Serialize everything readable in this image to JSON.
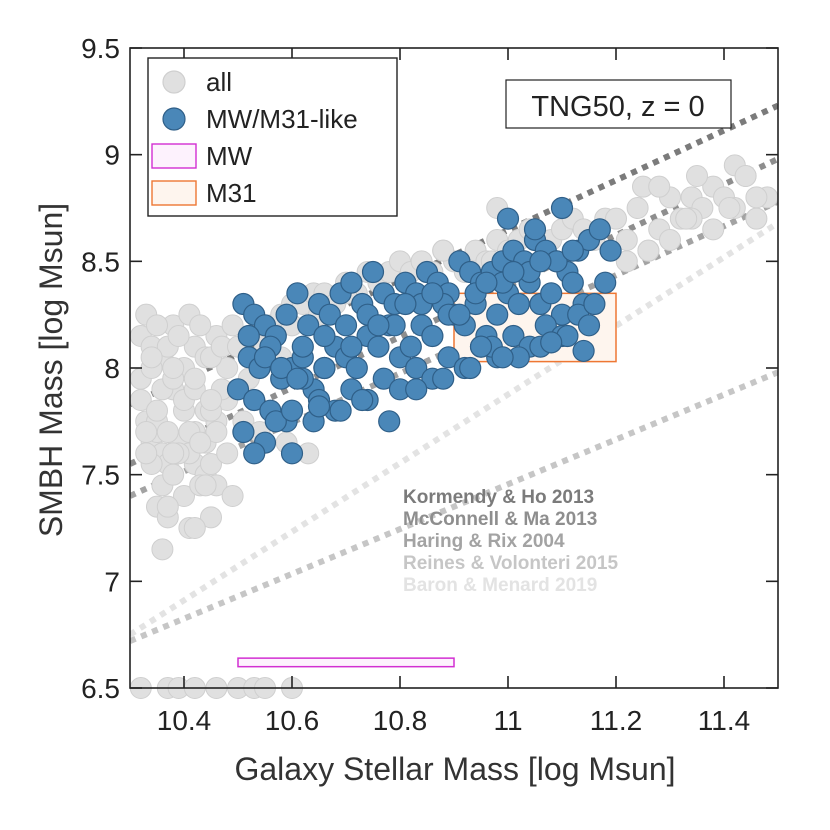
{
  "chart_data": {
    "type": "scatter",
    "title": "",
    "xlabel": "Galaxy Stellar Mass [log Msun]",
    "ylabel": "SMBH Mass [log Msun]",
    "xlim": [
      10.3,
      11.5
    ],
    "ylim": [
      6.5,
      9.5
    ],
    "xticks": [
      10.4,
      10.6,
      10.8,
      11,
      11.2,
      11.4
    ],
    "xtick_labels": [
      "10.4",
      "10.6",
      "10.8",
      "11",
      "11.2",
      "11.4"
    ],
    "yticks": [
      6.5,
      7,
      7.5,
      8,
      8.5,
      9,
      9.5
    ],
    "ytick_labels": [
      "6.5",
      "7",
      "7.5",
      "8",
      "8.5",
      "9",
      "9.5"
    ],
    "annotation": "TNG50, z = 0",
    "legend": {
      "placement": "top-left",
      "entries": [
        {
          "label": "all",
          "kind": "marker",
          "color": "#e0e0e0",
          "edge": "#cfcfcf"
        },
        {
          "label": "MW/M31-like",
          "kind": "marker",
          "color": "#4a87b8",
          "edge": "#2f5f88"
        },
        {
          "label": "MW",
          "kind": "box",
          "color": "#fdf2fd",
          "edge": "#d22fd2"
        },
        {
          "label": "M31",
          "kind": "box",
          "color": "#fef5ee",
          "edge": "#ee7733"
        }
      ]
    },
    "series": [
      {
        "name": "all",
        "color": "#e0e0e0",
        "edge": "#cfcfcf",
        "x": [
          10.32,
          10.33,
          10.34,
          10.35,
          10.36,
          10.37,
          10.38,
          10.4,
          10.42,
          10.44,
          10.46,
          10.48,
          10.32,
          10.34,
          10.36,
          10.38,
          10.4,
          10.42,
          10.44,
          10.46,
          10.48,
          10.32,
          10.34,
          10.36,
          10.38,
          10.4,
          10.42,
          10.44,
          10.46,
          10.33,
          10.35,
          10.37,
          10.39,
          10.41,
          10.43,
          10.45,
          10.47,
          10.49,
          10.33,
          10.35,
          10.37,
          10.39,
          10.41,
          10.43,
          10.45,
          10.34,
          10.36,
          10.38,
          10.4,
          10.42,
          10.44,
          10.46,
          10.48,
          10.35,
          10.37,
          10.39,
          10.41,
          10.43,
          10.45,
          10.47,
          10.5,
          10.52,
          10.54,
          10.56,
          10.58,
          10.6,
          10.62,
          10.64,
          10.66,
          10.68,
          10.7,
          10.72,
          10.74,
          10.76,
          10.78,
          10.8,
          10.82,
          10.84,
          10.86,
          10.88,
          10.9,
          10.92,
          10.94,
          10.96,
          10.98,
          11.0,
          11.02,
          11.04,
          11.06,
          11.08,
          11.1,
          11.12,
          11.14,
          11.16,
          11.18,
          11.2,
          11.22,
          11.24,
          11.26,
          11.28,
          11.3,
          11.32,
          11.34,
          11.36,
          11.38,
          11.4,
          11.42,
          11.44,
          11.46,
          11.48,
          11.22,
          11.26,
          11.3,
          11.34,
          11.38,
          11.42,
          11.46,
          11.25,
          11.33,
          11.41,
          10.36,
          10.41,
          10.45,
          10.49,
          10.44,
          10.37,
          10.42,
          10.33,
          10.38,
          10.35,
          10.98,
          11.28,
          11.35,
          11.44,
          10.75,
          10.88,
          10.97,
          10.6,
          10.55,
          10.65,
          10.7,
          10.52,
          10.58,
          10.34,
          10.38,
          10.42,
          10.45,
          10.51,
          10.54,
          10.59,
          10.63
        ],
        "y": [
          7.85,
          7.75,
          7.65,
          7.7,
          7.6,
          7.55,
          7.9,
          7.8,
          7.7,
          7.65,
          7.75,
          7.85,
          8.15,
          8.1,
          8.05,
          8.2,
          8.0,
          8.1,
          8.05,
          8.15,
          8.0,
          7.95,
          7.55,
          7.45,
          7.5,
          7.4,
          7.55,
          7.5,
          7.45,
          8.25,
          8.2,
          8.1,
          8.15,
          8.25,
          8.2,
          8.05,
          8.1,
          8.2,
          7.6,
          7.35,
          7.3,
          7.65,
          7.6,
          7.45,
          7.55,
          8.0,
          7.9,
          7.95,
          7.85,
          7.9,
          7.8,
          7.7,
          7.6,
          7.75,
          7.7,
          7.6,
          7.7,
          7.65,
          7.8,
          7.9,
          8.1,
          8.15,
          8.2,
          8.2,
          8.25,
          8.3,
          8.3,
          8.35,
          8.35,
          8.3,
          8.4,
          8.35,
          8.45,
          8.4,
          8.45,
          8.5,
          8.45,
          8.5,
          8.45,
          8.55,
          8.5,
          8.45,
          8.55,
          8.5,
          8.6,
          8.55,
          8.6,
          8.65,
          8.6,
          8.6,
          8.65,
          8.7,
          8.65,
          8.6,
          8.7,
          8.7,
          8.6,
          8.75,
          8.55,
          8.65,
          8.8,
          8.7,
          8.8,
          8.75,
          8.85,
          8.8,
          8.75,
          8.9,
          8.7,
          8.8,
          8.5,
          8.55,
          8.6,
          8.7,
          8.65,
          8.95,
          8.8,
          8.85,
          8.7,
          8.75,
          7.15,
          7.25,
          7.3,
          7.4,
          7.45,
          7.35,
          7.25,
          7.7,
          7.6,
          7.8,
          8.75,
          8.85,
          8.9,
          8.9,
          8.45,
          8.55,
          8.5,
          8.2,
          8.1,
          8.25,
          8.35,
          7.95,
          8.05,
          8.05,
          8.0,
          7.95,
          7.85,
          7.75,
          7.7,
          7.65,
          7.6
        ],
        "bottom_x": [
          10.32,
          10.37,
          10.39,
          10.42,
          10.46,
          10.5,
          10.53,
          10.55,
          10.6
        ]
      },
      {
        "name": "MW/M31-like",
        "color": "#4a87b8",
        "edge": "#2f5f88",
        "x": [
          10.51,
          10.53,
          10.55,
          10.57,
          10.59,
          10.61,
          10.63,
          10.65,
          10.67,
          10.69,
          10.71,
          10.73,
          10.75,
          10.77,
          10.79,
          10.81,
          10.83,
          10.85,
          10.87,
          10.89,
          10.91,
          10.93,
          10.95,
          10.97,
          10.99,
          11.01,
          11.03,
          11.05,
          11.07,
          11.09,
          11.11,
          11.13,
          11.15,
          11.17,
          11.19,
          10.52,
          10.54,
          10.56,
          10.58,
          10.6,
          10.62,
          10.64,
          10.66,
          10.68,
          10.7,
          10.72,
          10.74,
          10.76,
          10.78,
          10.8,
          10.82,
          10.84,
          10.86,
          10.88,
          10.9,
          10.92,
          10.94,
          10.96,
          10.98,
          11.0,
          11.02,
          11.04,
          11.06,
          11.08,
          11.1,
          11.12,
          11.14,
          10.5,
          10.53,
          10.56,
          10.59,
          10.62,
          10.65,
          10.68,
          10.71,
          10.74,
          10.77,
          10.8,
          10.83,
          10.86,
          10.89,
          10.92,
          10.95,
          10.98,
          11.01,
          11.04,
          11.07,
          11.1,
          11.13,
          11.16,
          10.51,
          10.55,
          10.6,
          10.64,
          10.69,
          10.73,
          10.78,
          10.83,
          10.88,
          10.93,
          10.97,
          11.02,
          11.06,
          11.11,
          11.15,
          10.52,
          10.55,
          10.58,
          10.62,
          10.66,
          10.7,
          10.74,
          10.79,
          10.84,
          10.89,
          10.94,
          10.99,
          11.04,
          11.09,
          10.53,
          10.57,
          10.61,
          10.66,
          10.71,
          10.76,
          10.81,
          10.86,
          10.91,
          10.96,
          11.01,
          11.06,
          11.12,
          11.18,
          11.0,
          11.05,
          11.1,
          10.6,
          10.65,
          10.95,
          10.99,
          11.08,
          11.14
        ],
        "y": [
          8.3,
          8.25,
          8.2,
          8.15,
          8.25,
          8.35,
          8.2,
          8.3,
          8.25,
          8.35,
          8.4,
          8.3,
          8.45,
          8.35,
          8.3,
          8.4,
          8.35,
          8.45,
          8.4,
          8.35,
          8.5,
          8.45,
          8.4,
          8.45,
          8.5,
          8.55,
          8.5,
          8.6,
          8.55,
          8.5,
          8.45,
          8.55,
          8.6,
          8.65,
          8.55,
          8.05,
          8.0,
          8.1,
          7.95,
          8.0,
          8.05,
          7.9,
          8.0,
          8.1,
          8.05,
          8.0,
          8.15,
          8.1,
          8.2,
          8.05,
          8.1,
          8.2,
          8.15,
          8.3,
          8.25,
          8.2,
          8.3,
          8.15,
          8.25,
          8.35,
          8.3,
          8.4,
          8.3,
          8.35,
          8.25,
          8.4,
          8.3,
          7.9,
          7.85,
          7.8,
          7.75,
          7.95,
          7.85,
          7.8,
          7.9,
          7.85,
          7.95,
          7.9,
          8.0,
          7.95,
          8.05,
          8.0,
          8.1,
          8.05,
          8.15,
          8.1,
          8.2,
          8.15,
          8.25,
          8.3,
          7.7,
          7.65,
          7.6,
          7.75,
          7.8,
          7.85,
          7.75,
          7.9,
          7.95,
          8.0,
          8.1,
          8.05,
          8.1,
          8.15,
          8.2,
          8.15,
          8.05,
          8.0,
          8.1,
          8.15,
          8.2,
          8.25,
          8.2,
          8.3,
          8.25,
          8.35,
          8.4,
          8.45,
          8.5,
          7.6,
          7.75,
          7.95,
          8.0,
          8.1,
          8.2,
          8.3,
          8.35,
          8.25,
          8.4,
          8.45,
          8.5,
          8.55,
          8.4,
          8.7,
          8.65,
          8.75,
          7.8,
          7.82,
          8.1,
          8.05,
          8.12,
          8.08
        ]
      }
    ],
    "boxes": [
      {
        "name": "MW",
        "x": [
          10.5,
          10.9
        ],
        "y": [
          6.6,
          6.64
        ],
        "edge": "#d22fd2",
        "fill": "#fdf2fd"
      },
      {
        "name": "M31",
        "x": [
          10.9,
          11.2
        ],
        "y": [
          8.03,
          8.35
        ],
        "edge": "#ee7733",
        "fill": "#fef5ee"
      }
    ],
    "relations": [
      {
        "name": "Kormendy & Ho 2013",
        "color": "#7b7b7b",
        "x": [
          10.3,
          11.5
        ],
        "y": [
          7.83,
          9.23
        ]
      },
      {
        "name": "McConnell & Ma 2013",
        "color": "#8e8e8e",
        "x": [
          10.3,
          11.5
        ],
        "y": [
          7.55,
          8.98
        ]
      },
      {
        "name": "Haring & Rix 2004",
        "color": "#a3a3a3",
        "x": [
          10.3,
          11.5
        ],
        "y": [
          7.4,
          8.78
        ]
      },
      {
        "name": "Reines & Volonteri 2015",
        "color": "#c6c6c6",
        "x": [
          10.3,
          11.5
        ],
        "y": [
          6.72,
          7.98
        ]
      },
      {
        "name": "Baron & Menard 2019",
        "color": "#e3e3e3",
        "x": [
          10.3,
          11.5
        ],
        "y": [
          6.75,
          8.68
        ]
      }
    ]
  }
}
